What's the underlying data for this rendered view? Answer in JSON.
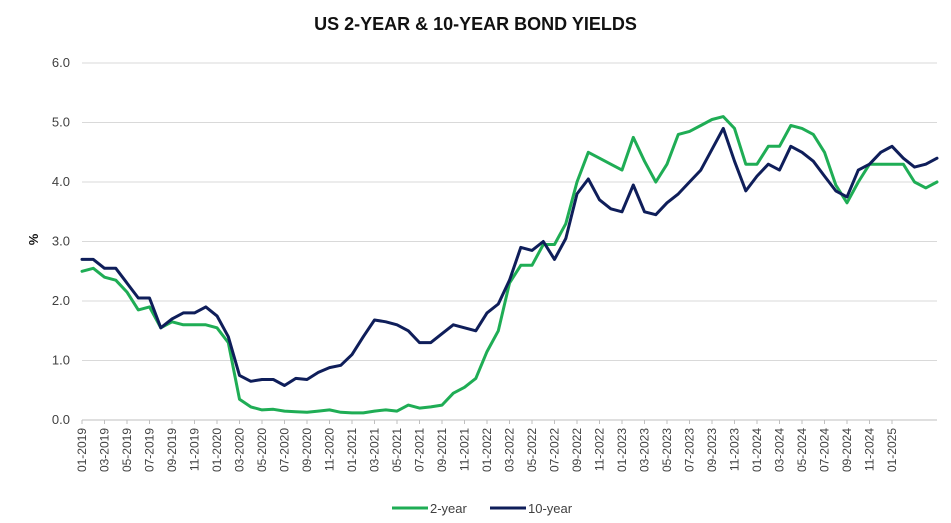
{
  "chart_data": {
    "type": "line",
    "title": "US 2-YEAR & 10-YEAR BOND YIELDS",
    "ylabel": "%",
    "xlabel": "",
    "ylim": [
      0.0,
      6.0
    ],
    "yticks": [
      "0.0",
      "1.0",
      "2.0",
      "3.0",
      "4.0",
      "5.0",
      "6.0"
    ],
    "xlim": [
      "2019-01",
      "2025-05"
    ],
    "xticks": [
      "01-2019",
      "03-2019",
      "05-2019",
      "07-2019",
      "09-2019",
      "11-2019",
      "01-2020",
      "03-2020",
      "05-2020",
      "07-2020",
      "09-2020",
      "11-2020",
      "01-2021",
      "03-2021",
      "05-2021",
      "07-2021",
      "09-2021",
      "11-2021",
      "01-2022",
      "03-2022",
      "05-2022",
      "07-2022",
      "09-2022",
      "11-2022",
      "01-2023",
      "03-2023",
      "05-2023",
      "07-2023",
      "09-2023",
      "11-2023",
      "01-2024",
      "03-2024",
      "05-2024",
      "07-2024",
      "09-2024",
      "11-2024",
      "01-2025"
    ],
    "grid": true,
    "legend_position": "bottom",
    "colors": {
      "2-year": "#1fad55",
      "10-year": "#0f1e5a",
      "grid": "#d9d9d9"
    },
    "series": [
      {
        "name": "2-year",
        "x": [
          "2019-01",
          "2019-02",
          "2019-03",
          "2019-04",
          "2019-05",
          "2019-06",
          "2019-07",
          "2019-08",
          "2019-09",
          "2019-10",
          "2019-11",
          "2019-12",
          "2020-01",
          "2020-02",
          "2020-03",
          "2020-04",
          "2020-05",
          "2020-06",
          "2020-07",
          "2020-08",
          "2020-09",
          "2020-10",
          "2020-11",
          "2020-12",
          "2021-01",
          "2021-02",
          "2021-03",
          "2021-04",
          "2021-05",
          "2021-06",
          "2021-07",
          "2021-08",
          "2021-09",
          "2021-10",
          "2021-11",
          "2021-12",
          "2022-01",
          "2022-02",
          "2022-03",
          "2022-04",
          "2022-05",
          "2022-06",
          "2022-07",
          "2022-08",
          "2022-09",
          "2022-10",
          "2022-11",
          "2022-12",
          "2023-01",
          "2023-02",
          "2023-03",
          "2023-04",
          "2023-05",
          "2023-06",
          "2023-07",
          "2023-08",
          "2023-09",
          "2023-10",
          "2023-11",
          "2023-12",
          "2024-01",
          "2024-02",
          "2024-03",
          "2024-04",
          "2024-05",
          "2024-06",
          "2024-07",
          "2024-08",
          "2024-09",
          "2024-10",
          "2024-11",
          "2024-12",
          "2025-01",
          "2025-02",
          "2025-03",
          "2025-04",
          "2025-05"
        ],
        "values": [
          2.5,
          2.55,
          2.4,
          2.35,
          2.15,
          1.85,
          1.9,
          1.55,
          1.65,
          1.6,
          1.6,
          1.6,
          1.55,
          1.3,
          0.35,
          0.22,
          0.17,
          0.18,
          0.15,
          0.14,
          0.13,
          0.15,
          0.17,
          0.13,
          0.12,
          0.12,
          0.15,
          0.17,
          0.15,
          0.25,
          0.2,
          0.22,
          0.25,
          0.45,
          0.55,
          0.7,
          1.15,
          1.5,
          2.3,
          2.6,
          2.6,
          2.95,
          2.95,
          3.3,
          4.0,
          4.5,
          4.4,
          4.3,
          4.2,
          4.75,
          4.35,
          4.0,
          4.3,
          4.8,
          4.85,
          4.95,
          5.05,
          5.1,
          4.9,
          4.3,
          4.3,
          4.6,
          4.6,
          4.95,
          4.9,
          4.8,
          4.5,
          3.95,
          3.65,
          4.0,
          4.3,
          4.3,
          4.3,
          4.3,
          4.0,
          3.9,
          4.0
        ]
      },
      {
        "name": "10-year",
        "x": [
          "2019-01",
          "2019-02",
          "2019-03",
          "2019-04",
          "2019-05",
          "2019-06",
          "2019-07",
          "2019-08",
          "2019-09",
          "2019-10",
          "2019-11",
          "2019-12",
          "2020-01",
          "2020-02",
          "2020-03",
          "2020-04",
          "2020-05",
          "2020-06",
          "2020-07",
          "2020-08",
          "2020-09",
          "2020-10",
          "2020-11",
          "2020-12",
          "2021-01",
          "2021-02",
          "2021-03",
          "2021-04",
          "2021-05",
          "2021-06",
          "2021-07",
          "2021-08",
          "2021-09",
          "2021-10",
          "2021-11",
          "2021-12",
          "2022-01",
          "2022-02",
          "2022-03",
          "2022-04",
          "2022-05",
          "2022-06",
          "2022-07",
          "2022-08",
          "2022-09",
          "2022-10",
          "2022-11",
          "2022-12",
          "2023-01",
          "2023-02",
          "2023-03",
          "2023-04",
          "2023-05",
          "2023-06",
          "2023-07",
          "2023-08",
          "2023-09",
          "2023-10",
          "2023-11",
          "2023-12",
          "2024-01",
          "2024-02",
          "2024-03",
          "2024-04",
          "2024-05",
          "2024-06",
          "2024-07",
          "2024-08",
          "2024-09",
          "2024-10",
          "2024-11",
          "2024-12",
          "2025-01",
          "2025-02",
          "2025-03",
          "2025-04",
          "2025-05"
        ],
        "values": [
          2.7,
          2.7,
          2.55,
          2.55,
          2.3,
          2.05,
          2.05,
          1.55,
          1.7,
          1.8,
          1.8,
          1.9,
          1.75,
          1.4,
          0.75,
          0.65,
          0.68,
          0.68,
          0.58,
          0.7,
          0.68,
          0.8,
          0.88,
          0.92,
          1.1,
          1.4,
          1.68,
          1.65,
          1.6,
          1.5,
          1.3,
          1.3,
          1.45,
          1.6,
          1.55,
          1.5,
          1.8,
          1.95,
          2.35,
          2.9,
          2.85,
          3.0,
          2.7,
          3.05,
          3.8,
          4.05,
          3.7,
          3.55,
          3.5,
          3.95,
          3.5,
          3.45,
          3.65,
          3.8,
          4.0,
          4.2,
          4.55,
          4.9,
          4.35,
          3.85,
          4.1,
          4.3,
          4.2,
          4.6,
          4.5,
          4.35,
          4.1,
          3.85,
          3.75,
          4.2,
          4.3,
          4.5,
          4.6,
          4.4,
          4.25,
          4.3,
          4.4
        ]
      }
    ]
  }
}
